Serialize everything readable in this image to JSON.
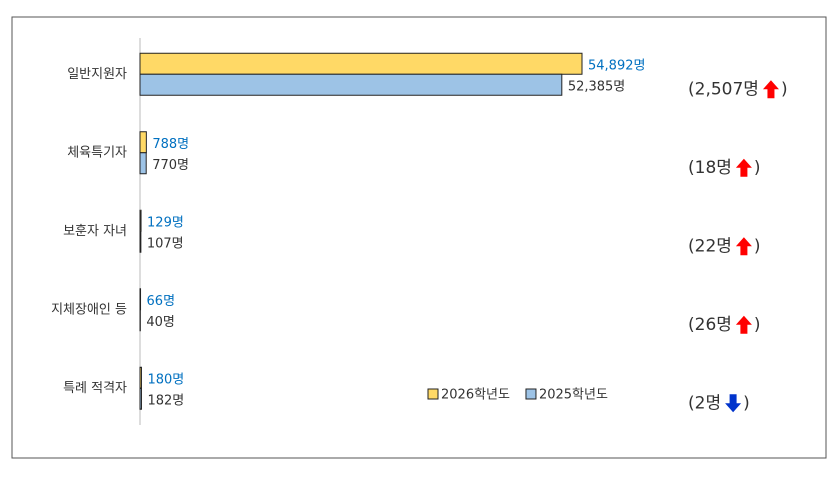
{
  "chart_data": {
    "type": "bar",
    "orientation": "horizontal",
    "categories": [
      "일반지원자",
      "체육특기자",
      "보훈자 자녀",
      "지체장애인 등",
      "특례 적격자"
    ],
    "series": [
      {
        "name": "2026학년도",
        "color": "#ffd966",
        "label_color": "#0070c0",
        "values": [
          54892,
          788,
          129,
          66,
          180
        ],
        "value_labels": [
          "54,892명",
          "788명",
          "129명",
          "66명",
          "180명"
        ]
      },
      {
        "name": "2025학년도",
        "color": "#9dc3e6",
        "label_color": "#333333",
        "values": [
          52385,
          770,
          107,
          40,
          182
        ],
        "value_labels": [
          "52,385명",
          "770명",
          "107명",
          "40명",
          "182명"
        ]
      }
    ],
    "annotations": [
      {
        "open": "(2,507명",
        "arrow": "up",
        "close": ")"
      },
      {
        "open": "(18명",
        "arrow": "up",
        "close": ")"
      },
      {
        "open": "(22명",
        "arrow": "up",
        "close": ")"
      },
      {
        "open": "(26명",
        "arrow": "up",
        "close": ")"
      },
      {
        "open": "(2명",
        "arrow": "down",
        "close": ")"
      }
    ],
    "legend_position": "bottom-right"
  }
}
